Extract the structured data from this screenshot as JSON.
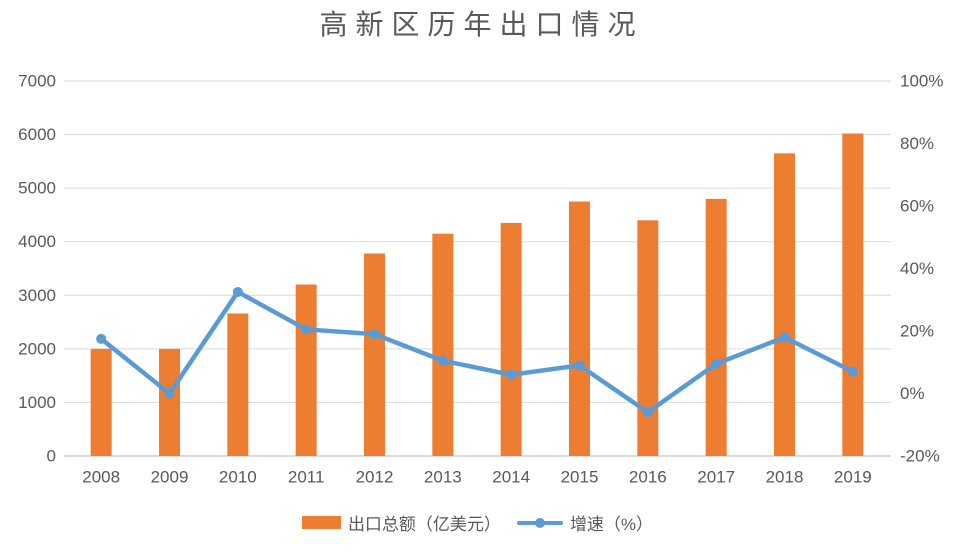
{
  "chart_data": {
    "type": "bar+line combo",
    "title": "高新区历年出口情况",
    "categories": [
      "2008",
      "2009",
      "2010",
      "2011",
      "2012",
      "2013",
      "2014",
      "2015",
      "2016",
      "2017",
      "2018",
      "2019"
    ],
    "series": [
      {
        "name": "出口总额（亿美元）",
        "type": "bar",
        "axis": "left",
        "color": "#ED7D31",
        "values": [
          2000,
          2000,
          2660,
          3200,
          3780,
          4150,
          4350,
          4750,
          4400,
          4800,
          5650,
          6020
        ]
      },
      {
        "name": "增速（%）",
        "type": "line",
        "axis": "right",
        "color": "#5B9BD5",
        "values": [
          17.5,
          0,
          32.5,
          20.5,
          19,
          10.5,
          6,
          9,
          -6,
          9.5,
          18,
          7
        ]
      }
    ],
    "left_axis": {
      "min": 0,
      "max": 7000,
      "step": 1000,
      "tick_labels": [
        "0",
        "1000",
        "2000",
        "3000",
        "4000",
        "5000",
        "6000",
        "7000"
      ]
    },
    "right_axis": {
      "min": -20,
      "max": 100,
      "step": 20,
      "tick_labels": [
        "-20%",
        "0%",
        "20%",
        "40%",
        "60%",
        "80%",
        "100%"
      ]
    },
    "legend": [
      "出口总额（亿美元）",
      "增速（%）"
    ],
    "legend_position": "bottom",
    "grid": true,
    "colors": {
      "grid": "#D9D9D9",
      "text": "#595959",
      "background": "#FFFFFF"
    }
  }
}
